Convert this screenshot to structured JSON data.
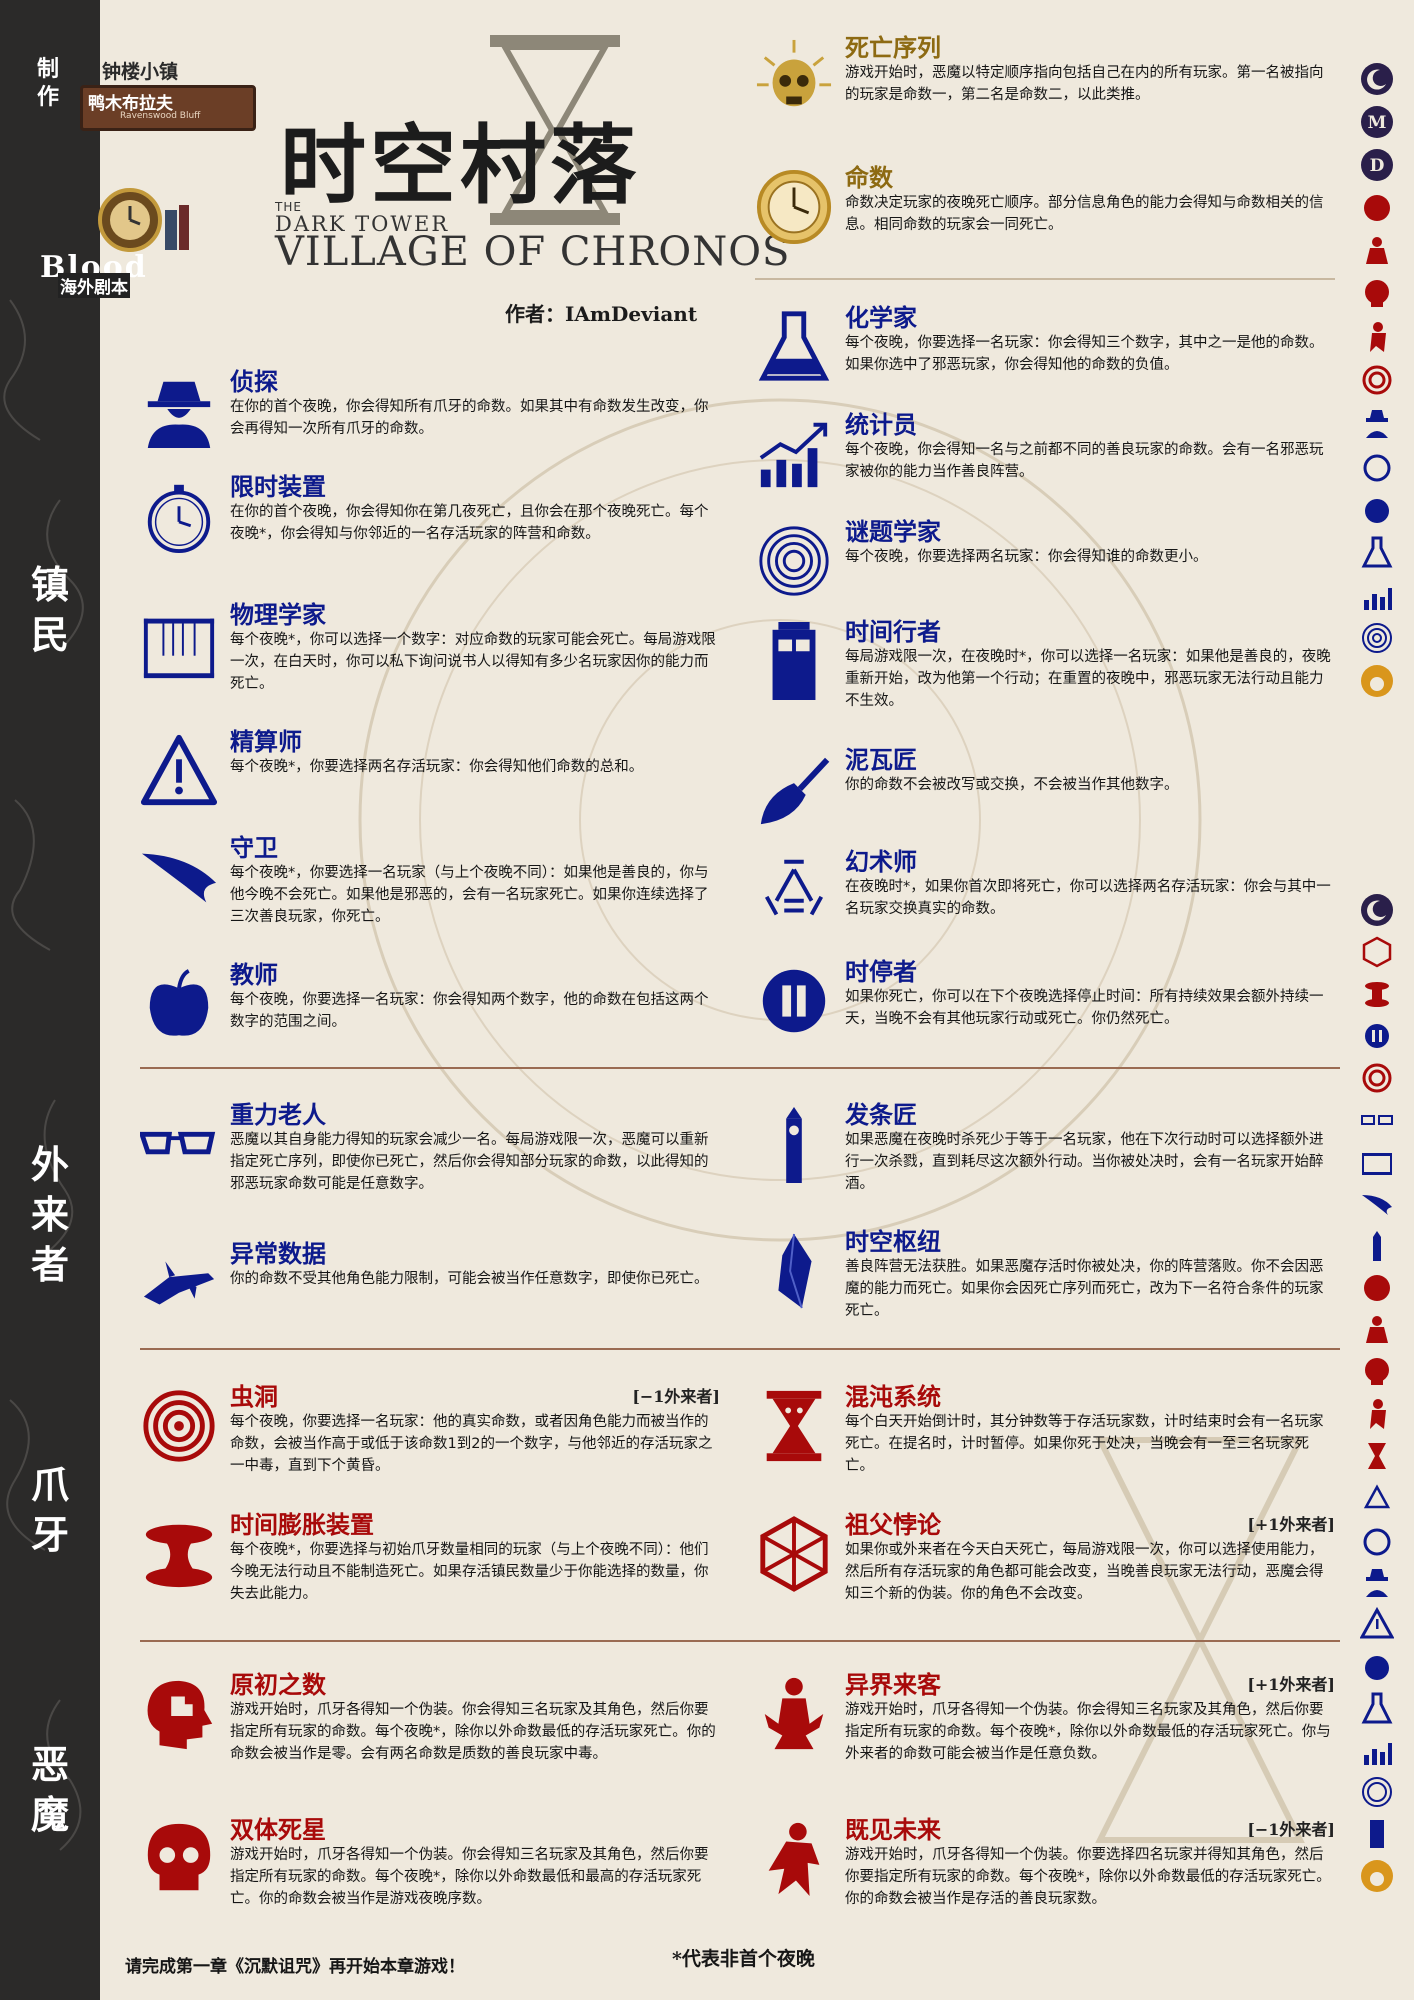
{
  "maker": {
    "made": "制作",
    "town": "钟楼小镇",
    "bluff": "鸭木布拉夫",
    "bluff_en": "Ravenswood Bluff"
  },
  "brand": {
    "blood": "Blood",
    "overseas": "海外剧本"
  },
  "title": "时空村落",
  "subtitle": {
    "the": "THE",
    "dark_tower": "DARK TOWER",
    "village": "VILLAGE OF CHRONOS"
  },
  "author": "作者：IAmDeviant",
  "sections": {
    "townsfolk": "镇民",
    "outsider": "外来者",
    "minion": "爪牙",
    "demon": "恶魔"
  },
  "rules": [
    {
      "name": "死亡序列",
      "desc": "游戏开始时，恶魔以特定顺序指向包括自己在内的所有玩家。第一名被指向的玩家是命数一，第二名是命数二，以此类推。",
      "icon": "skull-sun-icon"
    },
    {
      "name": "命数",
      "desc": "命数决定玩家的夜晚死亡顺序。部分信息角色的能力会得知与命数相关的信息。相同命数的玩家会一同死亡。",
      "icon": "clock-icon"
    }
  ],
  "townsfolk_left": [
    {
      "name": "侦探",
      "desc": "在你的首个夜晚，你会得知所有爪牙的命数。如果其中有命数发生改变，你会再得知一次所有爪牙的命数。",
      "icon": "detective-icon"
    },
    {
      "name": "限时装置",
      "desc": "在你的首个夜晚，你会得知你在第几夜死亡，且你会在那个夜晚死亡。每个夜晚*，你会得知与你邻近的一名存活玩家的阵营和命数。",
      "icon": "pocket-watch-icon"
    },
    {
      "name": "物理学家",
      "desc": "每个夜晚*，你可以选择一个数字：对应命数的玩家可能会死亡。每局游戏限一次，在白天时，你可以私下询问说书人以得知有多少名玩家因你的能力而死亡。",
      "icon": "newton-cradle-icon"
    },
    {
      "name": "精算师",
      "desc": "每个夜晚*，你要选择两名存活玩家：你会得知他们命数的总和。",
      "icon": "warning-icon"
    },
    {
      "name": "守卫",
      "desc": "每个夜晚*，你要选择一名玩家（与上个夜晚不同）：如果他是善良的，你与他今晚不会死亡。如果他是邪恶的，会有一名玩家死亡。如果你连续选择了三次善良玩家，你死亡。",
      "icon": "wing-icon"
    },
    {
      "name": "教师",
      "desc": "每个夜晚，你要选择一名玩家：你会得知两个数字，他的命数在包括这两个数字的范围之间。",
      "icon": "apple-icon"
    }
  ],
  "townsfolk_right": [
    {
      "name": "化学家",
      "desc": "每个夜晚，你要选择一名玩家：你会得知三个数字，其中之一是他的命数。如果你选中了邪恶玩家，你会得知他的命数的负值。",
      "icon": "flask-icon"
    },
    {
      "name": "统计员",
      "desc": "每个夜晚，你会得知一名与之前都不同的善良玩家的命数。会有一名邪恶玩家被你的能力当作善良阵营。",
      "icon": "chart-icon"
    },
    {
      "name": "谜题学家",
      "desc": "每个夜晚，你要选择两名玩家：你会得知谁的命数更小。",
      "icon": "maze-icon"
    },
    {
      "name": "时间行者",
      "desc": "每局游戏限一次，在夜晚时*，你可以选择一名玩家：如果他是善良的，夜晚重新开始，改为他第一个行动；在重置的夜晚中，邪恶玩家无法行动且能力不生效。",
      "icon": "police-box-icon"
    },
    {
      "name": "泥瓦匠",
      "desc": "你的命数不会被改写或交换，不会被当作其他数字。",
      "icon": "trowel-icon"
    },
    {
      "name": "幻术师",
      "desc": "在夜晚时*，如果你首次即将死亡，你可以选择两名存活玩家：你会与其中一名玩家交换真实的命数。",
      "icon": "triangle-icon"
    },
    {
      "name": "时停者",
      "desc": "如果你死亡，你可以在下个夜晚选择停止时间：所有持续效果会额外持续一天，当晚不会有其他玩家行动或死亡。你仍然死亡。",
      "icon": "pause-icon"
    }
  ],
  "outsiders_left": [
    {
      "name": "重力老人",
      "desc": "恶魔以其自身能力得知的玩家会减少一名。每局游戏限一次，恶魔可以重新指定死亡序列，即使你已死亡，然后你会得知部分玩家的命数，以此得知的邪恶玩家命数可能是任意数字。",
      "icon": "glasses-icon"
    },
    {
      "name": "异常数据",
      "desc": "你的命数不受其他角色能力限制，可能会被当作任意数字，即使你已死亡。",
      "icon": "crashed-plane-icon"
    }
  ],
  "outsiders_right": [
    {
      "name": "发条匠",
      "desc": "如果恶魔在夜晚时杀死少于等于一名玩家，他在下次行动时可以选择额外进行一次杀戮，直到耗尽这次额外行动。当你被处决时，会有一名玩家开始醉酒。",
      "icon": "clock-tower-icon"
    },
    {
      "name": "时空枢纽",
      "desc": "善良阵营无法获胜。如果恶魔存活时你被处决，你的阵营落败。你不会因恶魔的能力而死亡。如果你会因死亡序列而死亡，改为下一名符合条件的玩家死亡。",
      "icon": "crystal-icon"
    }
  ],
  "minions_left": [
    {
      "name": "虫洞",
      "tag": "[−1外来者]",
      "desc": "每个夜晚，你要选择一名玩家：他的真实命数，或者因角色能力而被当作的命数，会被当作高于或低于该命数1到2的一个数字，与他邻近的存活玩家之一中毒，直到下个黄昏。",
      "icon": "spiral-icon"
    },
    {
      "name": "时间膨胀装置",
      "desc": "每个夜晚*，你要选择与初始爪牙数量相同的玩家（与上个夜晚不同）：他们今晚无法行动且不能制造死亡。如果存活镇民数量少于你能选择的数量，你失去此能力。",
      "icon": "spool-icon"
    }
  ],
  "minions_right": [
    {
      "name": "混沌系统",
      "desc": "每个白天开始倒计时，其分钟数等于存活玩家数，计时结束时会有一名玩家死亡。在提名时，计时暂停。如果你死于处决，当晚会有一至三名玩家死亡。",
      "icon": "hourglass-skull-icon"
    },
    {
      "name": "祖父悖论",
      "tag": "[+1外来者]",
      "desc": "如果你或外来者在今天白天死亡，每局游戏限一次，你可以选择使用能力，然后所有存活玩家的角色都可能会改变，当晚善良玩家无法行动，恶魔会得知三个新的伪装。你的角色不会改变。",
      "icon": "cube-icon"
    }
  ],
  "demons_left": [
    {
      "name": "原初之数",
      "desc": "游戏开始时，爪牙各得知一个伪装。你会得知三名玩家及其角色，然后你要指定所有玩家的命数。每个夜晚*，除你以外命数最低的存活玩家死亡。你的命数会被当作是零。会有两名命数是质数的善良玩家中毒。",
      "icon": "puzzle-head-icon"
    },
    {
      "name": "双体死星",
      "desc": "游戏开始时，爪牙各得知一个伪装。你会得知三名玩家及其角色，然后你要指定所有玩家的命数。每个夜晚*，除你以外命数最低和最高的存活玩家死亡。你的命数会被当作是游戏夜晚序数。",
      "icon": "skull-icon"
    }
  ],
  "demons_right": [
    {
      "name": "异界来客",
      "tag": "[+1外来者]",
      "desc": "游戏开始时，爪牙各得知一个伪装。你会得知三名玩家及其角色，然后你要指定所有玩家的命数。每个夜晚*，除你以外命数最低的存活玩家死亡。你与外来者的命数可能会被当作是任意负数。",
      "icon": "kneeling-figure-icon"
    },
    {
      "name": "既见未来",
      "tag": "[−1外来者]",
      "desc": "游戏开始时，爪牙各得知一个伪装。你要选择四名玩家并得知其角色，然后你要指定所有玩家的命数。每个夜晚*，除你以外命数最低的存活玩家死亡。你的命数会被当作是存活的善良玩家数。",
      "icon": "ghost-figure-icon"
    }
  ],
  "night_order": {
    "first": [
      "moon-icon",
      "m-icon",
      "d-icon",
      "puzzle-head-icon",
      "kneeling-figure-icon",
      "skull-icon",
      "ghost-figure-icon",
      "spiral-icon",
      "detective-icon",
      "pocket-watch-icon",
      "apple-icon",
      "flask-icon",
      "chart-icon",
      "maze-icon",
      "sun-icon"
    ],
    "other": [
      "moon-icon",
      "cube-icon",
      "spool-icon",
      "pause-icon",
      "spiral-icon",
      "glasses-icon",
      "newton-cradle-icon",
      "wing-icon",
      "clock-tower-icon",
      "puzzle-head-icon",
      "kneeling-figure-icon",
      "skull-icon",
      "ghost-figure-icon",
      "hourglass-skull-icon",
      "triangle-icon",
      "pocket-watch-icon",
      "detective-icon",
      "warning-icon",
      "apple-icon",
      "flask-icon",
      "chart-icon",
      "maze-icon",
      "police-box-icon",
      "sun-icon"
    ],
    "labels": {
      "m": "M",
      "d": "D"
    }
  },
  "footer": {
    "left": "请完成第一章《沉默诅咒》再开始本章游戏！",
    "note": "*代表非首个夜晚"
  },
  "colors": {
    "townsfolk": "#0d1a8c",
    "evil": "#a80a0a",
    "rule": "#8d6a12",
    "sidebar": "#2b2a29",
    "paper": "#efe9dd"
  }
}
